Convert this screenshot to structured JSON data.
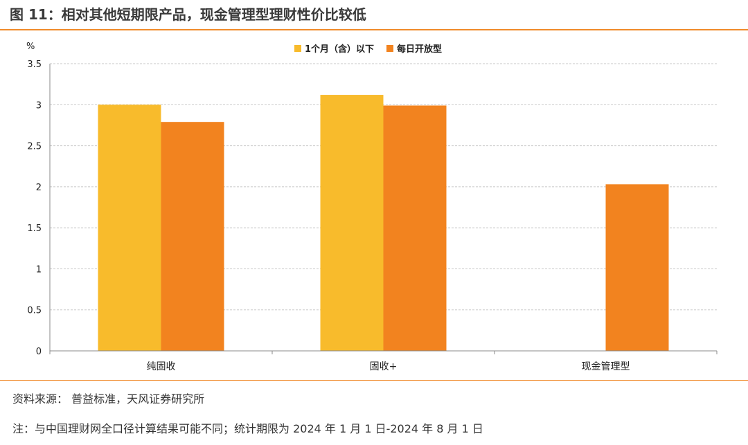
{
  "header": {
    "title": "图 11：相对其他短期限产品，现金管理型理财性价比较低"
  },
  "footer": {
    "source": "资料来源：  普益标准，天风证券研究所",
    "note": "注：与中国理财网全口径计算结果可能不同；统计期限为 2024 年 1 月 1 日-2024 年 8 月 1 日"
  },
  "chart_data": {
    "type": "bar",
    "unit_label": "%",
    "categories": [
      "纯固收",
      "固收+",
      "现金管理型"
    ],
    "series": [
      {
        "name": "1个月（含）以下",
        "color": "#f8bb2c",
        "values": [
          3.0,
          3.12,
          null
        ]
      },
      {
        "name": "每日开放型",
        "color": "#f2831f",
        "values": [
          2.79,
          2.99,
          2.03
        ]
      }
    ],
    "ylim": [
      0,
      3.5
    ],
    "yticks": [
      "0",
      "0.5",
      "1",
      "1.5",
      "2",
      "2.5",
      "3",
      "3.5"
    ],
    "grid": true,
    "legend_position": "top-center"
  }
}
